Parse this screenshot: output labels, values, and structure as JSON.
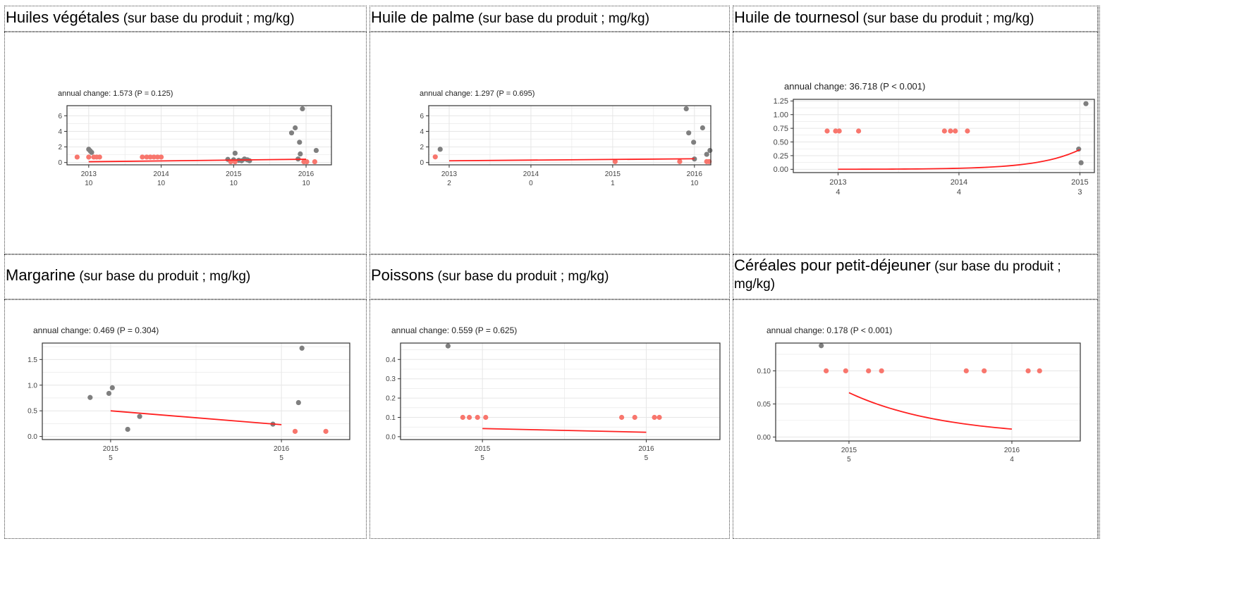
{
  "panels": [
    {
      "title_main": "Huiles végétales",
      "title_unit": " (sur base du produit ; mg/kg)",
      "annot": "annual change: 1.573 (P = 0.125)"
    },
    {
      "title_main": "Huile de palme",
      "title_unit": " (sur base du produit ; mg/kg)",
      "annot": "annual change: 1.297 (P = 0.695)"
    },
    {
      "title_main": "Huile de tournesol",
      "title_unit": " (sur base du produit ; mg/kg)",
      "annot": "annual change: 36.718 (P < 0.001)"
    },
    {
      "title_main": "Margarine",
      "title_unit": " (sur base du produit ; mg/kg)",
      "annot": "annual change: 0.469 (P = 0.304)"
    },
    {
      "title_main": "Poissons",
      "title_unit": " (sur base du produit ; mg/kg)",
      "annot": "annual change: 0.559 (P = 0.625)"
    },
    {
      "title_main": "Céréales pour petit-déjeuner",
      "title_unit": " (sur base du produit ; mg/kg)",
      "annot": "annual change: 0.178 (P < 0.001)"
    }
  ],
  "colors": {
    "detected": "#7f7f7f",
    "below_lod": "#f8766d",
    "trend": "#ff2020",
    "grid": "#e6e6e6",
    "frame": "#333333"
  },
  "chart_data": [
    {
      "type": "scatter",
      "title": "Huiles végétales (sur base du produit ; mg/kg)",
      "annotation": "annual change: 1.573 (P = 0.125)",
      "xlim": [
        2012.7,
        2016.35
      ],
      "ylim": [
        -0.3,
        7.3
      ],
      "x_ticks": [
        2013,
        2014,
        2015,
        2016
      ],
      "x_tick_labels": [
        "2013",
        "2014",
        "2015",
        "2016"
      ],
      "x_tick_counts": [
        "10",
        "10",
        "10",
        "10"
      ],
      "y_ticks": [
        0,
        2,
        4,
        6
      ],
      "y_tick_labels": [
        "0",
        "2",
        "4",
        "6"
      ],
      "series": [
        {
          "points": [
            [
              2013.0,
              1.7
            ],
            [
              2013.02,
              1.5
            ],
            [
              2013.04,
              1.3
            ],
            [
              2015.02,
              1.2
            ],
            [
              2014.92,
              0.4
            ],
            [
              2015.0,
              0.35
            ],
            [
              2015.07,
              0.28
            ],
            [
              2015.11,
              0.22
            ],
            [
              2015.15,
              0.45
            ],
            [
              2015.19,
              0.35
            ],
            [
              2015.22,
              0.22
            ],
            [
              2015.95,
              6.9
            ],
            [
              2015.85,
              4.45
            ],
            [
              2015.8,
              3.8
            ],
            [
              2015.91,
              2.6
            ],
            [
              2015.92,
              1.1
            ],
            [
              2016.14,
              1.55
            ],
            [
              2015.89,
              0.45
            ]
          ]
        },
        {
          "points": [
            [
              2012.84,
              0.7
            ],
            [
              2013.0,
              0.7
            ],
            [
              2013.07,
              0.7
            ],
            [
              2013.11,
              0.7
            ],
            [
              2013.15,
              0.7
            ],
            [
              2013.74,
              0.7
            ],
            [
              2013.8,
              0.7
            ],
            [
              2013.85,
              0.7
            ],
            [
              2013.9,
              0.7
            ],
            [
              2013.95,
              0.7
            ],
            [
              2014.0,
              0.7
            ],
            [
              2014.96,
              0.1
            ],
            [
              2015.02,
              0.1
            ],
            [
              2015.97,
              0.1
            ],
            [
              2016.01,
              0.1
            ],
            [
              2016.12,
              0.1
            ]
          ]
        }
      ],
      "trend": {
        "x": [
          2013,
          2016
        ],
        "y": [
          0.1,
          0.42
        ],
        "shape": "linear"
      }
    },
    {
      "type": "scatter",
      "title": "Huile de palme (sur base du produit ; mg/kg)",
      "annotation": "annual change: 1.297 (P = 0.695)",
      "xlim": [
        2012.75,
        2016.2
      ],
      "ylim": [
        -0.3,
        7.3
      ],
      "x_ticks": [
        2013,
        2014,
        2015,
        2016
      ],
      "x_tick_labels": [
        "2013",
        "2014",
        "2015",
        "2016"
      ],
      "x_tick_counts": [
        "2",
        "0",
        "1",
        "10"
      ],
      "y_ticks": [
        0,
        2,
        4,
        6
      ],
      "y_tick_labels": [
        "0",
        "2",
        "4",
        "6"
      ],
      "series": [
        {
          "points": [
            [
              2012.89,
              1.7
            ],
            [
              2015.9,
              6.9
            ],
            [
              2015.93,
              3.8
            ],
            [
              2016.1,
              4.45
            ],
            [
              2015.99,
              2.6
            ],
            [
              2016.15,
              1.05
            ],
            [
              2016.19,
              1.55
            ],
            [
              2016.0,
              0.45
            ]
          ]
        },
        {
          "points": [
            [
              2012.83,
              0.72
            ],
            [
              2015.03,
              0.12
            ],
            [
              2015.82,
              0.12
            ],
            [
              2016.15,
              0.12
            ],
            [
              2016.18,
              0.12
            ]
          ]
        }
      ],
      "trend": {
        "x": [
          2013,
          2016
        ],
        "y": [
          0.22,
          0.48
        ],
        "shape": "linear"
      }
    },
    {
      "type": "scatter",
      "title": "Huile de tournesol (sur base du produit ; mg/kg)",
      "annotation": "annual change: 36.718 (P < 0.001)",
      "xlim": [
        2012.63,
        2015.12
      ],
      "ylim": [
        -0.06,
        1.28
      ],
      "x_ticks": [
        2013,
        2014,
        2015
      ],
      "x_tick_labels": [
        "2013",
        "2014",
        "2015"
      ],
      "x_tick_counts": [
        "4",
        "4",
        "3"
      ],
      "y_ticks": [
        0.0,
        0.25,
        0.5,
        0.75,
        1.0,
        1.25
      ],
      "y_tick_labels": [
        "0.00",
        "0.25",
        "0.50",
        "0.75",
        "1.00",
        "1.25"
      ],
      "series": [
        {
          "points": [
            [
              2015.05,
              1.2
            ],
            [
              2014.99,
              0.37
            ],
            [
              2015.01,
              0.12
            ]
          ]
        },
        {
          "points": [
            [
              2012.91,
              0.7
            ],
            [
              2012.98,
              0.7
            ],
            [
              2013.01,
              0.7
            ],
            [
              2013.17,
              0.7
            ],
            [
              2013.88,
              0.7
            ],
            [
              2013.93,
              0.7
            ],
            [
              2013.97,
              0.7
            ],
            [
              2014.07,
              0.7
            ]
          ]
        }
      ],
      "trend": {
        "x0": 2013,
        "x1": 2015,
        "y0": 0.001,
        "y1": 0.36,
        "shape": "exponential"
      }
    },
    {
      "type": "scatter",
      "title": "Margarine (sur base du produit ; mg/kg)",
      "annotation": "annual change: 0.469 (P = 0.304)",
      "xlim": [
        2014.6,
        2016.4
      ],
      "ylim": [
        -0.06,
        1.82
      ],
      "x_ticks": [
        2015,
        2016
      ],
      "x_tick_labels": [
        "2015",
        "2016"
      ],
      "x_tick_counts": [
        "5",
        "5"
      ],
      "y_ticks": [
        0.0,
        0.5,
        1.0,
        1.5
      ],
      "y_tick_labels": [
        "0.0",
        "0.5",
        "1.0",
        "1.5"
      ],
      "series": [
        {
          "points": [
            [
              2014.88,
              0.76
            ],
            [
              2014.99,
              0.84
            ],
            [
              2015.01,
              0.95
            ],
            [
              2015.1,
              0.14
            ],
            [
              2015.17,
              0.39
            ],
            [
              2015.95,
              0.24
            ],
            [
              2016.12,
              1.72
            ],
            [
              2016.1,
              0.66
            ]
          ]
        },
        {
          "points": [
            [
              2016.08,
              0.1
            ],
            [
              2016.26,
              0.1
            ]
          ]
        }
      ],
      "trend": {
        "x": [
          2015,
          2016
        ],
        "y": [
          0.5,
          0.23
        ],
        "shape": "linear"
      }
    },
    {
      "type": "scatter",
      "title": "Poissons (sur base du produit ; mg/kg)",
      "annotation": "annual change: 0.559 (P = 0.625)",
      "xlim": [
        2014.5,
        2016.45
      ],
      "ylim": [
        -0.015,
        0.485
      ],
      "x_ticks": [
        2015,
        2016
      ],
      "x_tick_labels": [
        "2015",
        "2016"
      ],
      "x_tick_counts": [
        "5",
        "5"
      ],
      "y_ticks": [
        0.0,
        0.1,
        0.2,
        0.3,
        0.4
      ],
      "y_tick_labels": [
        "0.0",
        "0.1",
        "0.2",
        "0.3",
        "0.4"
      ],
      "series": [
        {
          "points": [
            [
              2014.79,
              0.47
            ]
          ]
        },
        {
          "points": [
            [
              2014.88,
              0.1
            ],
            [
              2014.92,
              0.1
            ],
            [
              2014.97,
              0.1
            ],
            [
              2015.02,
              0.1
            ],
            [
              2015.85,
              0.1
            ],
            [
              2015.93,
              0.1
            ],
            [
              2016.05,
              0.1
            ],
            [
              2016.08,
              0.1
            ]
          ]
        }
      ],
      "trend": {
        "x": [
          2015,
          2016
        ],
        "y": [
          0.042,
          0.023
        ],
        "shape": "linear"
      }
    },
    {
      "type": "scatter",
      "title": "Céréales pour petit-déjeuner (sur base du produit ; mg/kg)",
      "annotation": "annual change: 0.178 (P < 0.001)",
      "xlim": [
        2014.55,
        2016.42
      ],
      "ylim": [
        -0.006,
        0.142
      ],
      "x_ticks": [
        2015,
        2016
      ],
      "x_tick_labels": [
        "2015",
        "2016"
      ],
      "x_tick_counts": [
        "5",
        "4"
      ],
      "y_ticks": [
        0.0,
        0.05,
        0.1
      ],
      "y_tick_labels": [
        "0.00",
        "0.05",
        "0.10"
      ],
      "series": [
        {
          "points": [
            [
              2014.83,
              0.138
            ]
          ]
        },
        {
          "points": [
            [
              2014.86,
              0.1
            ],
            [
              2014.98,
              0.1
            ],
            [
              2015.12,
              0.1
            ],
            [
              2015.2,
              0.1
            ],
            [
              2015.72,
              0.1
            ],
            [
              2015.83,
              0.1
            ],
            [
              2016.1,
              0.1
            ],
            [
              2016.17,
              0.1
            ]
          ]
        }
      ],
      "trend": {
        "x0": 2015,
        "x1": 2016,
        "y0": 0.067,
        "y1": 0.012,
        "shape": "exponential"
      }
    }
  ]
}
